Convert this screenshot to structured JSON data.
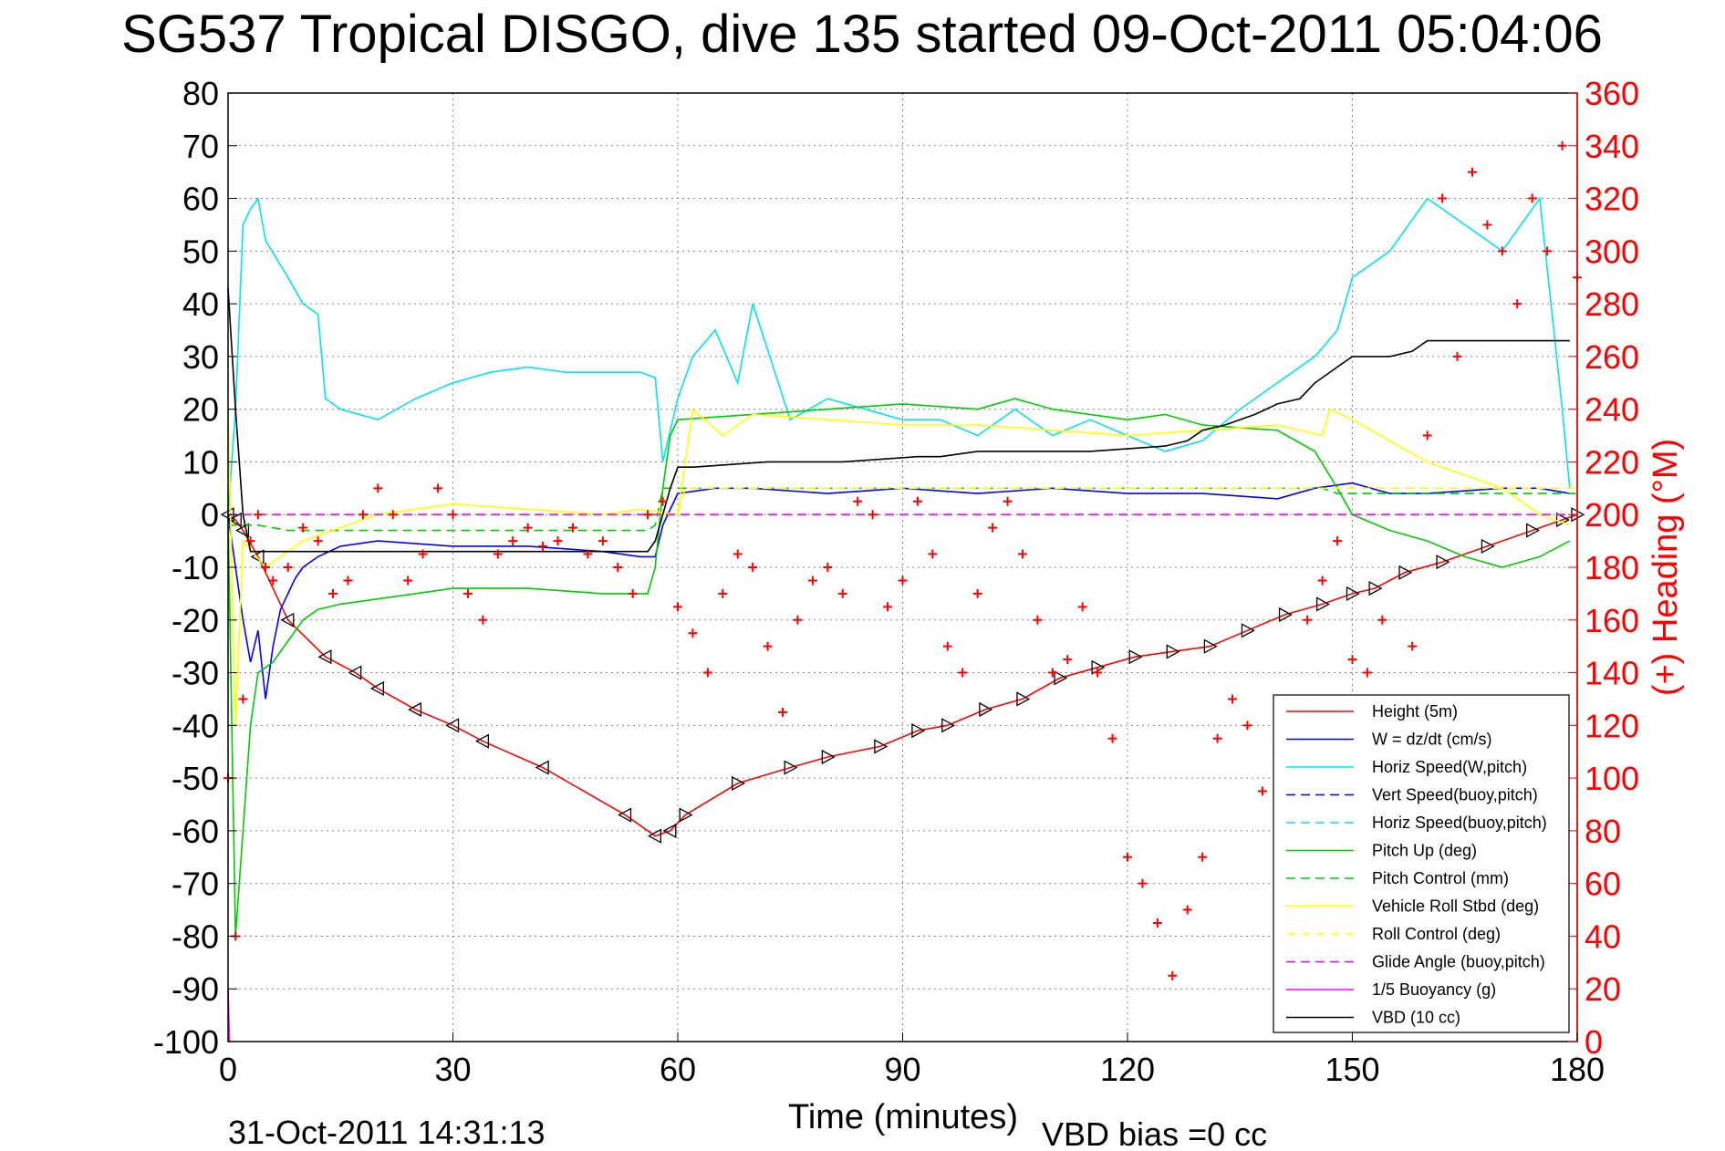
{
  "chart_data": {
    "type": "line",
    "title": "SG537 Tropical DISGO, dive 135 started 09-Oct-2011 05:04:06",
    "xlabel": "Time (minutes)",
    "ylabel_right": "(+) Heading (°M)",
    "xlim": [
      0,
      180
    ],
    "ylim": [
      -100,
      80
    ],
    "ylim_right": [
      0,
      360
    ],
    "x_ticks": [
      "0",
      "30",
      "60",
      "90",
      "120",
      "150",
      "180"
    ],
    "y_ticks": [
      "80",
      "70",
      "60",
      "50",
      "40",
      "30",
      "20",
      "10",
      "0",
      "-10",
      "-20",
      "-30",
      "-40",
      "-50",
      "-60",
      "-70",
      "-80",
      "-90",
      "-100"
    ],
    "y_ticks_right": [
      "360",
      "340",
      "320",
      "300",
      "280",
      "260",
      "240",
      "220",
      "200",
      "180",
      "160",
      "140",
      "120",
      "100",
      "80",
      "60",
      "40",
      "20",
      "0"
    ],
    "grid": true,
    "legend_position": "bottom-right",
    "footer_date": "31-Oct-2011 14:31:13",
    "footer_note": "VBD bias =0 cc",
    "legend": [
      {
        "label": "Height (5m)",
        "color": "#ff0000",
        "dash": "solid"
      },
      {
        "label": "W = dz/dt (cm/s)",
        "color": "#0000ff",
        "dash": "solid"
      },
      {
        "label": "Horiz Speed(W,pitch)",
        "color": "#00e5ee",
        "dash": "solid"
      },
      {
        "label": "Vert Speed(buoy,pitch)",
        "color": "#0000ff",
        "dash": "dashed"
      },
      {
        "label": "Horiz Speed(buoy,pitch)",
        "color": "#00e5ee",
        "dash": "dashed"
      },
      {
        "label": "Pitch Up (deg)",
        "color": "#00cc00",
        "dash": "solid"
      },
      {
        "label": "Pitch Control (mm)",
        "color": "#00cc00",
        "dash": "dashed"
      },
      {
        "label": "Vehicle Roll Stbd (deg)",
        "color": "#ffff00",
        "dash": "solid"
      },
      {
        "label": "Roll Control (deg)",
        "color": "#ffff00",
        "dash": "dashed"
      },
      {
        "label": "Glide Angle (buoy,pitch)",
        "color": "#ff00ff",
        "dash": "dashed"
      },
      {
        "label": "1/5 Buoyancy (g)",
        "color": "#ff00ff",
        "dash": "solid"
      },
      {
        "label": "VBD (10 cc)",
        "color": "#000000",
        "dash": "solid"
      }
    ],
    "series": [
      {
        "name": "Height (5m)",
        "color": "#ff0000",
        "dash": "solid",
        "axis": "left",
        "x": [
          0,
          1,
          2,
          4,
          8,
          13,
          17,
          20,
          25,
          30,
          34,
          42,
          53,
          57,
          59,
          61,
          68,
          75,
          80,
          87,
          92,
          96,
          101,
          106,
          111,
          116,
          121,
          126,
          131,
          136,
          141,
          146,
          150,
          153,
          157,
          162,
          168,
          174,
          178,
          180
        ],
        "y": [
          0,
          -1,
          -3,
          -8,
          -20,
          -27,
          -30,
          -33,
          -37,
          -40,
          -43,
          -48,
          -57,
          -61,
          -60,
          -57,
          -51,
          -48,
          -46,
          -44,
          -41,
          -40,
          -37,
          -35,
          -31,
          -29,
          -27,
          -26,
          -25,
          -22,
          -19,
          -17,
          -15,
          -14,
          -11,
          -9,
          -6,
          -3,
          -1,
          0
        ]
      },
      {
        "name": "W = dz/dt (cm/s)",
        "color": "#0000ff",
        "dash": "solid",
        "axis": "left",
        "x": [
          0,
          1,
          2,
          3,
          4,
          5,
          6,
          7,
          8,
          9,
          10,
          12,
          15,
          20,
          30,
          40,
          50,
          55,
          57,
          58,
          60,
          65,
          70,
          80,
          90,
          100,
          110,
          120,
          130,
          140,
          145,
          150,
          155,
          160,
          170,
          175,
          179
        ],
        "y": [
          0,
          -10,
          -20,
          -28,
          -22,
          -35,
          -25,
          -18,
          -15,
          -12,
          -10,
          -8,
          -6,
          -5,
          -6,
          -6,
          -7,
          -8,
          -8,
          -2,
          4,
          5,
          5,
          4,
          5,
          4,
          5,
          4,
          4,
          3,
          5,
          6,
          4,
          4,
          5,
          5,
          4
        ]
      },
      {
        "name": "Horiz Speed(W,pitch)",
        "color": "#00e5ee",
        "dash": "solid",
        "axis": "left",
        "x": [
          0,
          1,
          2,
          3,
          4,
          5,
          8,
          10,
          12,
          13,
          15,
          20,
          25,
          30,
          35,
          40,
          45,
          50,
          55,
          57,
          58,
          60,
          62,
          65,
          68,
          70,
          75,
          80,
          85,
          90,
          95,
          100,
          105,
          110,
          115,
          120,
          125,
          130,
          135,
          140,
          145,
          148,
          150,
          155,
          160,
          165,
          170,
          175,
          178,
          179
        ],
        "y": [
          0,
          20,
          55,
          58,
          60,
          52,
          45,
          40,
          38,
          22,
          20,
          18,
          22,
          25,
          27,
          28,
          27,
          27,
          27,
          26,
          10,
          22,
          30,
          35,
          25,
          40,
          18,
          22,
          20,
          18,
          18,
          15,
          20,
          15,
          18,
          15,
          12,
          14,
          20,
          25,
          30,
          35,
          45,
          50,
          60,
          55,
          50,
          60,
          20,
          5
        ]
      },
      {
        "name": "Pitch Up (deg)",
        "color": "#00cc00",
        "dash": "solid",
        "axis": "left",
        "x": [
          0,
          1,
          2,
          3,
          4,
          6,
          8,
          10,
          12,
          15,
          20,
          25,
          30,
          40,
          50,
          56,
          57,
          58,
          59,
          60,
          70,
          80,
          90,
          100,
          105,
          110,
          120,
          125,
          130,
          140,
          145,
          148,
          150,
          155,
          160,
          165,
          170,
          175,
          179
        ],
        "y": [
          0,
          -80,
          -60,
          -40,
          -30,
          -28,
          -24,
          -20,
          -18,
          -17,
          -16,
          -15,
          -14,
          -14,
          -15,
          -15,
          -10,
          5,
          15,
          18,
          19,
          20,
          21,
          20,
          22,
          20,
          18,
          19,
          17,
          16,
          12,
          5,
          0,
          -3,
          -5,
          -8,
          -10,
          -8,
          -5
        ]
      },
      {
        "name": "Pitch Control (mm)",
        "color": "#00cc00",
        "dash": "dashed",
        "axis": "left",
        "x": [
          0,
          4,
          8,
          56,
          57,
          58,
          146,
          148,
          180
        ],
        "y": [
          -2,
          -2,
          -3,
          -3,
          -2,
          5,
          5,
          4,
          4
        ]
      },
      {
        "name": "Vehicle Roll Stbd (deg)",
        "color": "#ffff00",
        "dash": "solid",
        "axis": "left",
        "x": [
          0,
          1,
          2,
          5,
          10,
          20,
          30,
          40,
          50,
          55,
          60,
          62,
          66,
          70,
          80,
          90,
          100,
          110,
          120,
          130,
          140,
          146,
          147,
          150,
          160,
          170,
          175,
          179
        ],
        "y": [
          20,
          -40,
          -5,
          -10,
          -5,
          0,
          2,
          1,
          0,
          1,
          0,
          20,
          15,
          19,
          18,
          17,
          17,
          16,
          15,
          16,
          17,
          15,
          20,
          18,
          10,
          5,
          0,
          -2
        ]
      },
      {
        "name": "Roll Control (deg)",
        "color": "#ffff00",
        "dash": "dashed",
        "axis": "left",
        "x": [
          0,
          60,
          61,
          180
        ],
        "y": [
          0,
          0,
          5,
          5
        ]
      },
      {
        "name": "Glide Angle (buoy,pitch)",
        "color": "#ff00ff",
        "dash": "dashed",
        "axis": "left",
        "x": [
          0,
          180
        ],
        "y": [
          0,
          0
        ]
      },
      {
        "name": "1/5 Buoyancy (g)",
        "color": "#ff00ff",
        "dash": "solid",
        "axis": "left",
        "x": [
          0,
          0.2,
          0.3
        ],
        "y": [
          -90,
          -100,
          -100
        ]
      },
      {
        "name": "VBD (10 cc)",
        "color": "#000000",
        "dash": "solid",
        "axis": "left",
        "x": [
          0,
          1,
          2,
          3,
          56,
          57,
          58,
          59,
          60,
          62,
          72,
          82,
          92,
          95,
          100,
          105,
          115,
          125,
          128,
          130,
          133,
          137,
          140,
          143,
          145,
          148,
          150,
          155,
          158,
          160,
          170,
          179
        ],
        "y": [
          43,
          20,
          0,
          -7,
          -7,
          -5,
          0,
          5,
          9,
          9,
          10,
          10,
          11,
          11,
          12,
          12,
          12,
          13,
          14,
          16,
          17,
          19,
          21,
          22,
          25,
          28,
          30,
          30,
          31,
          33,
          33,
          33
        ]
      },
      {
        "name": "(+) Heading (°M)",
        "color": "#ff0000",
        "dash": "markers",
        "axis": "right",
        "x": [
          0,
          1,
          2,
          3,
          4,
          5,
          6,
          8,
          10,
          12,
          14,
          16,
          18,
          20,
          22,
          24,
          26,
          28,
          30,
          32,
          34,
          36,
          38,
          40,
          42,
          44,
          46,
          48,
          50,
          52,
          54,
          56,
          58,
          60,
          62,
          64,
          66,
          68,
          70,
          72,
          74,
          76,
          78,
          80,
          82,
          84,
          86,
          88,
          90,
          92,
          94,
          96,
          98,
          100,
          102,
          104,
          106,
          108,
          110,
          112,
          114,
          116,
          118,
          120,
          122,
          124,
          126,
          128,
          130,
          132,
          134,
          136,
          138,
          140,
          142,
          144,
          146,
          148,
          150,
          152,
          154,
          156,
          158,
          160,
          162,
          164,
          166,
          168,
          170,
          172,
          174,
          176,
          178,
          180
        ],
        "y": [
          100,
          40,
          130,
          190,
          200,
          180,
          175,
          180,
          195,
          190,
          170,
          175,
          200,
          210,
          200,
          175,
          185,
          210,
          200,
          170,
          160,
          185,
          190,
          195,
          188,
          190,
          195,
          185,
          190,
          180,
          170,
          200,
          205,
          165,
          155,
          140,
          170,
          185,
          180,
          150,
          125,
          160,
          175,
          180,
          170,
          205,
          200,
          165,
          175,
          205,
          185,
          150,
          140,
          170,
          195,
          205,
          185,
          160,
          140,
          145,
          165,
          140,
          115,
          70,
          60,
          45,
          25,
          50,
          70,
          115,
          130,
          120,
          95,
          110,
          130,
          160,
          175,
          190,
          145,
          140,
          160,
          110,
          150,
          230,
          320,
          260,
          330,
          310,
          300,
          280,
          320,
          300,
          340,
          290
        ]
      }
    ]
  }
}
